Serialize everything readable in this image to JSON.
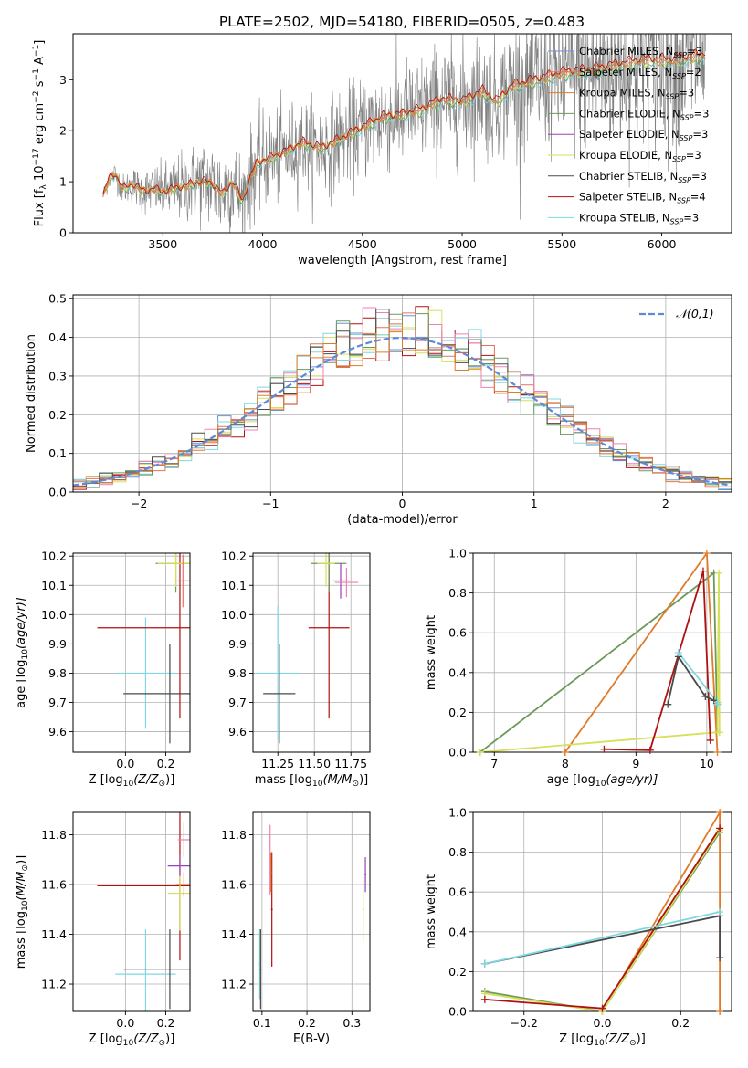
{
  "figure": {
    "title": "PLATE=2502, MJD=54180, FIBERID=0505, z=0.483"
  },
  "colors": {
    "chabrier_miles": "#6f8fd6",
    "salpeter_miles": "#e1735b",
    "kroupa_miles": "#e07b2a",
    "chabrier_elodie": "#6b9a5a",
    "salpeter_elodie": "#9a40b8",
    "kroupa_elodie": "#d6e05a",
    "chabrier_stelib": "#4a4a4a",
    "salpeter_stelib": "#b01010",
    "kroupa_stelib": "#7fd8e0",
    "pink": "#f080b0",
    "data_gray": "#808080",
    "normal_curve": "#5b8ad6",
    "grid": "#b0b0b0"
  },
  "chart_data": [
    {
      "id": "spectrum",
      "type": "line",
      "xlabel": "wavelength [Angstrom, rest frame]",
      "ylabel": "Flux [f_λ 10^-17 erg cm^-2 s^-1 A^-1]",
      "xlim": [
        3050,
        6350
      ],
      "ylim": [
        0,
        3.9
      ],
      "xticks": [
        3500,
        4000,
        4500,
        5000,
        5500,
        6000
      ],
      "yticks": [
        0,
        1,
        2,
        3
      ],
      "grid": false,
      "legend_position": "upper right",
      "legend": [
        {
          "label": "Chabrier MILES, N",
          "sub": "SSP",
          "tail": "=3",
          "color_key": "chabrier_miles"
        },
        {
          "label": "Salpeter MILES, N",
          "sub": "SSP",
          "tail": "=2",
          "color_key": "salpeter_miles"
        },
        {
          "label": "Kroupa MILES, N",
          "sub": "SSP",
          "tail": "=3",
          "color_key": "kroupa_miles"
        },
        {
          "label": "Chabrier ELODIE, N",
          "sub": "SSP",
          "tail": "=3",
          "color_key": "chabrier_elodie"
        },
        {
          "label": "Salpeter ELODIE, N",
          "sub": "SSP",
          "tail": "=3",
          "color_key": "salpeter_elodie"
        },
        {
          "label": "Kroupa ELODIE, N",
          "sub": "SSP",
          "tail": "=3",
          "color_key": "kroupa_elodie"
        },
        {
          "label": "Chabrier STELIB, N",
          "sub": "SSP",
          "tail": "=3",
          "color_key": "chabrier_stelib"
        },
        {
          "label": "Salpeter STELIB, N",
          "sub": "SSP",
          "tail": "=4",
          "color_key": "salpeter_stelib"
        },
        {
          "label": "Kroupa STELIB, N",
          "sub": "SSP",
          "tail": "=3",
          "color_key": "kroupa_stelib"
        }
      ],
      "model_continuum": [
        [
          3200,
          0.72
        ],
        [
          3230,
          1.05
        ],
        [
          3260,
          1.15
        ],
        [
          3300,
          0.85
        ],
        [
          3350,
          0.95
        ],
        [
          3400,
          0.8
        ],
        [
          3450,
          0.85
        ],
        [
          3500,
          0.8
        ],
        [
          3600,
          0.9
        ],
        [
          3700,
          1.0
        ],
        [
          3750,
          0.95
        ],
        [
          3800,
          0.75
        ],
        [
          3850,
          1.0
        ],
        [
          3900,
          0.6
        ],
        [
          3930,
          1.0
        ],
        [
          3970,
          1.35
        ],
        [
          4000,
          1.4
        ],
        [
          4100,
          1.55
        ],
        [
          4200,
          1.75
        ],
        [
          4300,
          1.65
        ],
        [
          4400,
          1.85
        ],
        [
          4500,
          2.05
        ],
        [
          4600,
          2.25
        ],
        [
          4700,
          2.3
        ],
        [
          4800,
          2.4
        ],
        [
          4900,
          2.6
        ],
        [
          5000,
          2.55
        ],
        [
          5100,
          2.75
        ],
        [
          5175,
          2.55
        ],
        [
          5250,
          2.85
        ],
        [
          5400,
          3.0
        ],
        [
          5500,
          3.1
        ],
        [
          5700,
          3.2
        ],
        [
          5900,
          3.35
        ],
        [
          6050,
          3.35
        ],
        [
          6200,
          3.45
        ]
      ],
      "data_noise_scale": [
        [
          3200,
          0.15
        ],
        [
          3500,
          0.5
        ],
        [
          3800,
          0.9
        ],
        [
          4200,
          0.8
        ],
        [
          4800,
          1.0
        ],
        [
          5200,
          1.1
        ],
        [
          5600,
          1.5
        ],
        [
          6200,
          1.6
        ]
      ]
    },
    {
      "id": "residuals",
      "type": "histogram",
      "xlabel": "(data-model)/error",
      "ylabel": "Normed distribution",
      "xlim": [
        -2.5,
        2.5
      ],
      "ylim": [
        0,
        0.51
      ],
      "xticks": [
        -2,
        -1,
        0,
        1,
        2
      ],
      "yticks": [
        0.0,
        0.1,
        0.2,
        0.3,
        0.4,
        0.5
      ],
      "grid": true,
      "legend": [
        {
          "label": "𝒩(0,1)",
          "color_key": "normal_curve"
        }
      ],
      "legend_position": "upper right",
      "bin_width": 0.1
    },
    {
      "id": "age_vs_Z",
      "type": "errorbar",
      "xlabel": "Z [log10(Z/Z⊙)]",
      "ylabel": "age [log10(age/yr)]",
      "xlim": [
        -0.26,
        0.32
      ],
      "ylim": [
        9.53,
        10.21
      ],
      "xticks": [
        0.0,
        0.2
      ],
      "yticks": [
        9.6,
        9.7,
        9.8,
        9.9,
        10.0,
        10.1,
        10.2
      ],
      "grid": true,
      "points": [
        {
          "x": 0.1,
          "xerr": 0.15,
          "y": 9.8,
          "yerr": 0.19,
          "color_key": "kroupa_stelib"
        },
        {
          "x": 0.22,
          "xerr": 0.23,
          "y": 9.73,
          "yerr": 0.17,
          "color_key": "chabrier_stelib"
        },
        {
          "x": 0.27,
          "xerr": 0.41,
          "y": 9.955,
          "yerr": 0.31,
          "color_key": "salpeter_stelib"
        },
        {
          "x": 0.25,
          "xerr": 0.1,
          "y": 10.175,
          "yerr": 0.1,
          "color_key": "chabrier_elodie"
        },
        {
          "x": 0.25,
          "xerr": 0.09,
          "y": 10.175,
          "yerr": 0.08,
          "color_key": "kroupa_elodie"
        },
        {
          "x": 0.285,
          "xerr": 0.04,
          "y": 10.115,
          "yerr": 0.09,
          "color_key": "salpeter_miles"
        },
        {
          "x": 0.29,
          "xerr": 0.03,
          "y": 10.115,
          "yerr": 0.06,
          "color_key": "pink"
        }
      ]
    },
    {
      "id": "age_vs_mass",
      "type": "errorbar",
      "xlabel": "mass [log10(M/M⊙)]",
      "ylabel": "",
      "xlim": [
        11.08,
        11.88
      ],
      "ylim": [
        9.53,
        10.21
      ],
      "xticks": [
        11.25,
        11.5,
        11.75
      ],
      "yticks": [
        9.6,
        9.7,
        9.8,
        9.9,
        10.0,
        10.1,
        10.2
      ],
      "grid": true,
      "points": [
        {
          "x": 11.25,
          "xerr": 0.15,
          "y": 9.8,
          "yerr": 0.23,
          "color_key": "kroupa_stelib"
        },
        {
          "x": 11.26,
          "xerr": 0.11,
          "y": 9.73,
          "yerr": 0.17,
          "color_key": "chabrier_stelib"
        },
        {
          "x": 11.6,
          "xerr": 0.14,
          "y": 9.955,
          "yerr": 0.31,
          "color_key": "salpeter_stelib"
        },
        {
          "x": 11.6,
          "xerr": 0.12,
          "y": 10.175,
          "yerr": 0.1,
          "color_key": "chabrier_elodie"
        },
        {
          "x": 11.58,
          "xerr": 0.06,
          "y": 10.175,
          "yerr": 0.08,
          "color_key": "kroupa_elodie"
        },
        {
          "x": 11.68,
          "xerr": 0.06,
          "y": 10.115,
          "yerr": 0.06,
          "color_key": "salpeter_elodie"
        },
        {
          "x": 11.72,
          "xerr": 0.08,
          "y": 10.11,
          "yerr": 0.05,
          "color_key": "pink"
        }
      ]
    },
    {
      "id": "weight_vs_age",
      "type": "line",
      "xlabel": "age [log10(age/yr)]",
      "ylabel": "mass weight",
      "xlim": [
        6.7,
        10.35
      ],
      "ylim": [
        0,
        1.0
      ],
      "xticks": [
        7,
        8,
        9,
        10
      ],
      "yticks": [
        0.0,
        0.2,
        0.4,
        0.6,
        0.8,
        1.0
      ],
      "grid": true,
      "series": [
        {
          "color_key": "chabrier_elodie",
          "x": [
            6.8,
            10.1,
            10.15
          ],
          "y": [
            0.0,
            0.9,
            0.1
          ]
        },
        {
          "color_key": "kroupa_miles",
          "x": [
            8.0,
            10.0,
            10.15
          ],
          "y": [
            0.0,
            1.0,
            0.0
          ]
        },
        {
          "color_key": "kroupa_elodie",
          "x": [
            6.8,
            10.15,
            10.17,
            10.18
          ],
          "y": [
            0.0,
            0.1,
            0.9,
            0.1
          ]
        },
        {
          "color_key": "salpeter_stelib",
          "x": [
            8.55,
            9.2,
            9.95,
            10.05
          ],
          "y": [
            0.015,
            0.01,
            0.91,
            0.06
          ]
        },
        {
          "color_key": "chabrier_stelib",
          "x": [
            9.45,
            9.6,
            9.98,
            10.1
          ],
          "y": [
            0.24,
            0.48,
            0.28,
            0.26
          ]
        },
        {
          "color_key": "kroupa_stelib",
          "x": [
            9.6,
            10.15,
            10.15
          ],
          "y": [
            0.5,
            0.25,
            0.24
          ]
        }
      ]
    },
    {
      "id": "mass_vs_Z",
      "type": "errorbar",
      "xlabel": "Z [log10(Z/Z⊙)]",
      "ylabel": "mass [log10(M/M⊙)]",
      "xlim": [
        -0.26,
        0.32
      ],
      "ylim": [
        11.09,
        11.89
      ],
      "xticks": [
        0.0,
        0.2
      ],
      "yticks": [
        11.2,
        11.4,
        11.6,
        11.8
      ],
      "grid": true,
      "points": [
        {
          "x": 0.1,
          "xerr": 0.15,
          "y": 11.24,
          "yerr": 0.18,
          "color_key": "kroupa_stelib"
        },
        {
          "x": 0.22,
          "xerr": 0.23,
          "y": 11.26,
          "yerr": 0.16,
          "color_key": "chabrier_stelib"
        },
        {
          "x": 0.27,
          "xerr": 0.41,
          "y": 11.595,
          "yerr": 0.3,
          "color_key": "salpeter_stelib"
        },
        {
          "x": 0.27,
          "xerr": 0.06,
          "y": 11.565,
          "yerr": 0.15,
          "color_key": "kroupa_elodie"
        },
        {
          "x": 0.27,
          "xerr": 0.06,
          "y": 11.675,
          "yerr": 0.04,
          "color_key": "salpeter_elodie"
        },
        {
          "x": 0.29,
          "xerr": 0.04,
          "y": 11.6,
          "yerr": 0.05,
          "color_key": "kroupa_miles"
        },
        {
          "x": 0.29,
          "xerr": 0.03,
          "y": 11.78,
          "yerr": 0.07,
          "color_key": "pink"
        }
      ]
    },
    {
      "id": "mass_vs_ebv",
      "type": "errorbar",
      "xlabel": "E(B-V)",
      "ylabel": "",
      "xlim": [
        0.08,
        0.34
      ],
      "ylim": [
        11.09,
        11.89
      ],
      "xticks": [
        0.1,
        0.2,
        0.3
      ],
      "yticks": [
        11.2,
        11.4,
        11.6,
        11.8
      ],
      "grid": true,
      "points": [
        {
          "x": 0.095,
          "xerr": 0.002,
          "y": 11.28,
          "yerr": 0.14,
          "color_key": "kroupa_stelib"
        },
        {
          "x": 0.097,
          "xerr": 0.002,
          "y": 11.26,
          "yerr": 0.16,
          "color_key": "chabrier_stelib"
        },
        {
          "x": 0.122,
          "xerr": 0.002,
          "y": 11.5,
          "yerr": 0.23,
          "color_key": "salpeter_stelib"
        },
        {
          "x": 0.118,
          "xerr": 0.002,
          "y": 11.7,
          "yerr": 0.14,
          "color_key": "pink"
        },
        {
          "x": 0.12,
          "xerr": 0.002,
          "y": 11.65,
          "yerr": 0.08,
          "color_key": "kroupa_miles"
        },
        {
          "x": 0.325,
          "xerr": 0.002,
          "y": 11.5,
          "yerr": 0.13,
          "color_key": "kroupa_elodie"
        },
        {
          "x": 0.33,
          "xerr": 0.002,
          "y": 11.64,
          "yerr": 0.07,
          "color_key": "salpeter_elodie"
        }
      ]
    },
    {
      "id": "weight_vs_Z",
      "type": "line",
      "xlabel": "Z [log10(Z/Z⊙)]",
      "ylabel": "mass weight",
      "xlim": [
        -0.33,
        0.33
      ],
      "ylim": [
        0,
        1.0
      ],
      "xticks": [
        -0.2,
        0.0,
        0.2
      ],
      "yticks": [
        0.0,
        0.2,
        0.4,
        0.6,
        0.8,
        1.0
      ],
      "grid": true,
      "series": [
        {
          "color_key": "kroupa_miles",
          "x": [
            0.0,
            0.3,
            0.3
          ],
          "y": [
            0.0,
            1.0,
            0.0
          ]
        },
        {
          "color_key": "chabrier_elodie",
          "x": [
            -0.3,
            0.0,
            0.3
          ],
          "y": [
            0.1,
            0.0,
            0.9
          ]
        },
        {
          "color_key": "kroupa_elodie",
          "x": [
            -0.3,
            0.0,
            0.3
          ],
          "y": [
            0.09,
            0.0,
            0.91
          ]
        },
        {
          "color_key": "salpeter_stelib",
          "x": [
            -0.3,
            0.0,
            0.3
          ],
          "y": [
            0.06,
            0.015,
            0.92
          ]
        },
        {
          "color_key": "chabrier_stelib",
          "x": [
            -0.3,
            0.3,
            0.3
          ],
          "y": [
            0.24,
            0.48,
            0.27
          ]
        },
        {
          "color_key": "kroupa_stelib",
          "x": [
            -0.3,
            0.3
          ],
          "y": [
            0.24,
            0.5
          ]
        }
      ]
    }
  ]
}
